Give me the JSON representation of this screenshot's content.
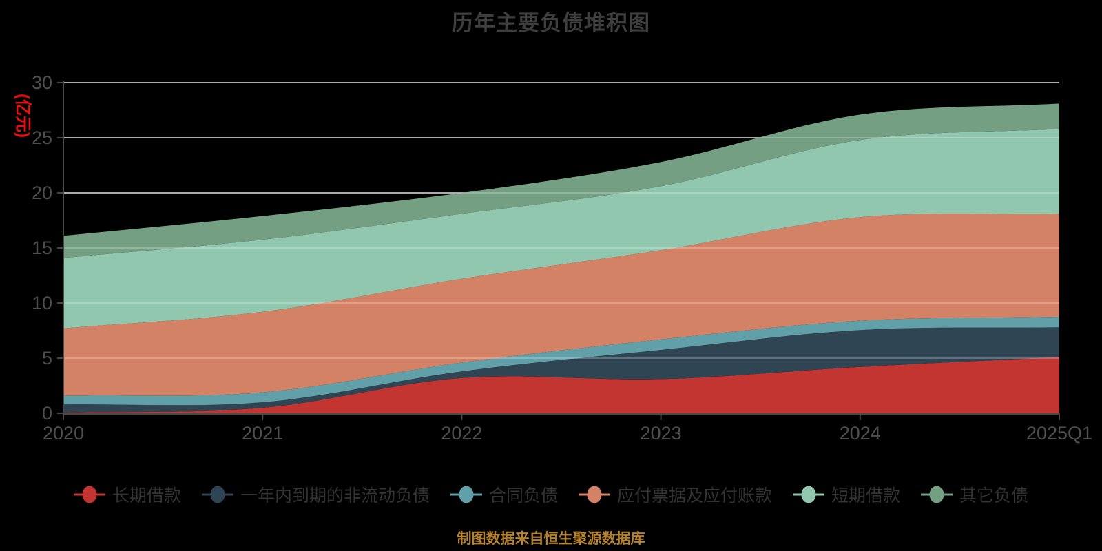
{
  "title": "历年主要负债堆积图",
  "y_axis_name": "(亿元)",
  "footer": "制图数据来自恒生聚源数据库",
  "colors": {
    "background": "#000000",
    "title": "#3e3e3e",
    "tick": "#4f4f4f",
    "legend": "#333333",
    "yname": "#f00c0c",
    "footer": "#b5832e",
    "grid": "#c9c9c9",
    "axis": "#4a4a4a"
  },
  "chart_data": {
    "type": "area",
    "stacked": true,
    "smooth": true,
    "grid": true,
    "legend_position": "bottom",
    "title": "历年主要负债堆积图",
    "ylabel": "(亿元)",
    "ylim": [
      0,
      30
    ],
    "yticks": [
      0,
      5,
      10,
      15,
      20,
      25,
      30
    ],
    "categories": [
      "2020",
      "2021",
      "2022",
      "2023",
      "2024",
      "2025Q1"
    ],
    "series": [
      {
        "name": "长期借款",
        "color": "#c23531",
        "values": [
          0.05,
          0.5,
          3.2,
          3.1,
          4.2,
          5.1
        ]
      },
      {
        "name": "一年内到期的非流动负债",
        "color": "#2f4554",
        "values": [
          0.75,
          0.5,
          0.6,
          2.65,
          3.35,
          2.7
        ]
      },
      {
        "name": "合同负债",
        "color": "#61a0a8",
        "values": [
          0.8,
          0.9,
          0.8,
          0.95,
          0.85,
          0.95
        ]
      },
      {
        "name": "应付票据及应付账款",
        "color": "#d48265",
        "values": [
          6.1,
          7.3,
          7.6,
          8.1,
          9.4,
          9.35
        ]
      },
      {
        "name": "短期借款",
        "color": "#91c7ae",
        "values": [
          6.4,
          6.55,
          5.9,
          5.8,
          7.0,
          7.7
        ]
      },
      {
        "name": "其它负债",
        "color": "#749f83",
        "values": [
          2.0,
          2.15,
          1.9,
          2.2,
          2.3,
          2.3
        ]
      }
    ],
    "totals": [
      16.1,
      17.9,
      20.0,
      22.8,
      27.1,
      28.1
    ]
  }
}
